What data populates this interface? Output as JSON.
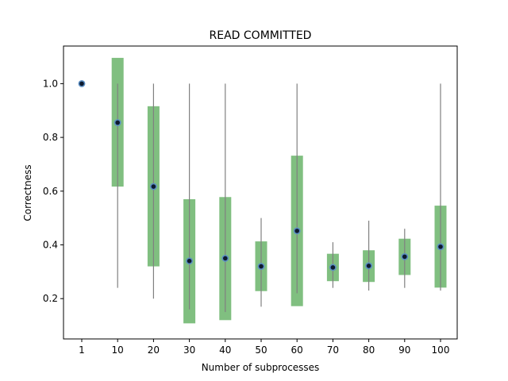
{
  "chart_data": {
    "type": "boxplot",
    "title": "READ COMMITTED",
    "xlabel": "Number of subprocesses",
    "ylabel": "Correctness",
    "categories": [
      "1",
      "10",
      "20",
      "30",
      "40",
      "50",
      "60",
      "70",
      "80",
      "90",
      "100"
    ],
    "yticks": [
      "0.2",
      "0.4",
      "0.6",
      "0.8",
      "1.0"
    ],
    "ylim": [
      0.05,
      1.14
    ],
    "mean": [
      1.0,
      0.855,
      0.617,
      0.34,
      0.35,
      0.32,
      0.452,
      0.316,
      0.322,
      0.356,
      0.393
    ],
    "box_low": [
      1.0,
      0.617,
      0.32,
      0.108,
      0.12,
      0.228,
      0.172,
      0.265,
      0.262,
      0.288,
      0.241
    ],
    "box_high": [
      1.0,
      1.096,
      0.916,
      0.57,
      0.578,
      0.413,
      0.732,
      0.367,
      0.38,
      0.423,
      0.546
    ],
    "min": [
      1.0,
      0.24,
      0.2,
      0.16,
      0.15,
      0.17,
      0.22,
      0.24,
      0.23,
      0.24,
      0.23
    ],
    "max": [
      1.0,
      1.0,
      1.0,
      1.0,
      1.0,
      0.5,
      1.0,
      0.41,
      0.49,
      0.46,
      1.0
    ],
    "colors": {
      "box": "#80bf80",
      "whisker": "#808080",
      "marker_edge": "#5b8fc4",
      "marker_fill": "#0d1a2e"
    },
    "grid": false,
    "legend": "none"
  }
}
